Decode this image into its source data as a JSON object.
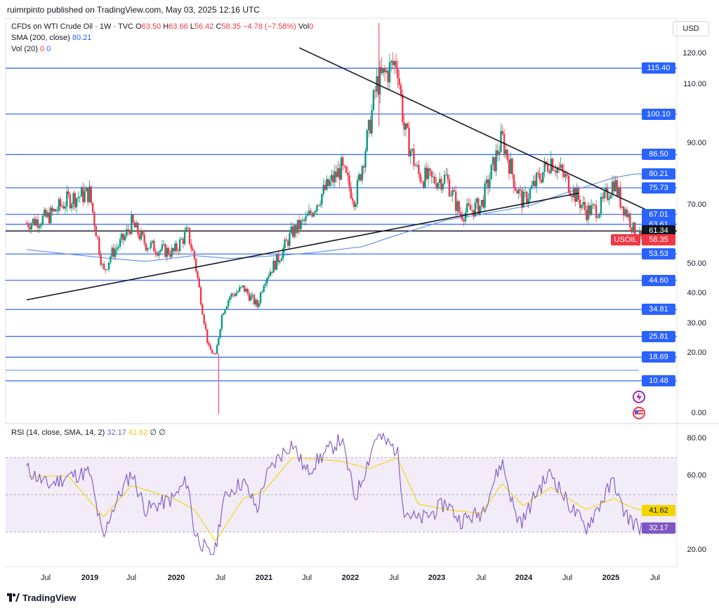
{
  "header": {
    "published_text": "ruimrpinto published on TradingView.com, May 03, 2025 12:16 UTC"
  },
  "legend": {
    "symbol": "CFDs on WTI Crude Oil · 1W · TVC",
    "o_label": "O",
    "o_value": "63.50",
    "h_label": "H",
    "h_value": "63.66",
    "l_label": "L",
    "l_value": "56.42",
    "c_label": "C",
    "c_value": "58.35",
    "change": "−4.78 (−7.58%)",
    "vol_label": "Vol",
    "vol_value": "0",
    "sma_label": "SMA (200, close)",
    "sma_value": "80.21",
    "volma_label": "Vol (20)",
    "volma_value1": "0",
    "volma_value2": "0",
    "rsi_label": "RSI (14, close, SMA, 14, 2)",
    "rsi_value": "32.17",
    "rsi_ma_value": "41.62",
    "rsi_extra": "∅ ∅"
  },
  "currency_button": "USD",
  "footer": {
    "brand": "TradingView"
  },
  "colors": {
    "up": "#089981",
    "down": "#f23645",
    "hline": "#2962ff",
    "sma": "#5b8def",
    "rsi": "#7e57c2",
    "rsi_ma": "#f5d400",
    "band": "#ede7f6",
    "trend": "#131722"
  },
  "icons": [
    "lightning-icon",
    "us-flag-icon"
  ],
  "chart_data": [
    {
      "type": "candlestick",
      "title": "CFDs on WTI Crude Oil",
      "interval": "1W",
      "scale": "log",
      "ylim": [
        0,
        130
      ],
      "y_ticks": [
        "120.00",
        "110.00",
        "90.00",
        "70.00",
        "50.00",
        "40.00",
        "30.00",
        "20.00",
        "0.00"
      ],
      "x_ticks": [
        "Jul",
        "2019",
        "Jul",
        "2020",
        "Jul",
        "2021",
        "Jul",
        "2022",
        "Jul",
        "2023",
        "Jul",
        "2024",
        "Jul",
        "2025",
        "Jul"
      ],
      "horizontal_levels": [
        115.4,
        100.1,
        86.5,
        75.73,
        67.01,
        63.61,
        53.53,
        44.6,
        34.81,
        25.81,
        18.69,
        10.48
      ],
      "level_labels": [
        "115.40",
        "100.10",
        "86.50",
        "75.73",
        "67.01",
        "63.61",
        "53.53",
        "44.60",
        "34.81",
        "25.81",
        "18.69",
        "10.48"
      ],
      "black_level": 61.34,
      "black_level_label": "61.34",
      "last_price": 58.35,
      "last_price_label": "58.35",
      "symbol_label": "USOIL",
      "sma200_label": "80.21",
      "sma200_value": 80.21,
      "trendlines": [
        {
          "from": [
            "2021-04",
            122
          ],
          "to": [
            "2025-07",
            67
          ],
          "note": "descending resistance"
        },
        {
          "from": [
            "2018-01",
            38
          ],
          "to": [
            "2024-08",
            74
          ],
          "note": "ascending support"
        }
      ],
      "close_path": [
        [
          "2018-01",
          64
        ],
        [
          "2018-04",
          66
        ],
        [
          "2018-07",
          72
        ],
        [
          "2018-10",
          74
        ],
        [
          "2018-12",
          47
        ],
        [
          "2019-01",
          53
        ],
        [
          "2019-03",
          59
        ],
        [
          "2019-04",
          64
        ],
        [
          "2019-06",
          57
        ],
        [
          "2019-08",
          55
        ],
        [
          "2019-10",
          54
        ],
        [
          "2019-12",
          61
        ],
        [
          "2020-01",
          52
        ],
        [
          "2020-03",
          22
        ],
        [
          "2020-04",
          19
        ],
        [
          "2020-05",
          34
        ],
        [
          "2020-06",
          39
        ],
        [
          "2020-08",
          42
        ],
        [
          "2020-10",
          36
        ],
        [
          "2020-11",
          45
        ],
        [
          "2021-01",
          52
        ],
        [
          "2021-03",
          61
        ],
        [
          "2021-05",
          65
        ],
        [
          "2021-07",
          73
        ],
        [
          "2021-10",
          82
        ],
        [
          "2021-12",
          72
        ],
        [
          "2022-02",
          95
        ],
        [
          "2022-03",
          110
        ],
        [
          "2022-06",
          118
        ],
        [
          "2022-07",
          95
        ],
        [
          "2022-09",
          80
        ],
        [
          "2022-11",
          78
        ],
        [
          "2023-01",
          79
        ],
        [
          "2023-03",
          67
        ],
        [
          "2023-06",
          70
        ],
        [
          "2023-09",
          92
        ],
        [
          "2023-11",
          76
        ],
        [
          "2023-12",
          71
        ],
        [
          "2024-02",
          78
        ],
        [
          "2024-04",
          85
        ],
        [
          "2024-06",
          79
        ],
        [
          "2024-09",
          68
        ],
        [
          "2024-11",
          69
        ],
        [
          "2025-01",
          78
        ],
        [
          "2025-02",
          71
        ],
        [
          "2025-03",
          67
        ],
        [
          "2025-04",
          60
        ],
        [
          "2025-05",
          58.35
        ]
      ]
    },
    {
      "type": "line",
      "title": "RSI (14, close, SMA, 14, 2)",
      "ylim": [
        15,
        85
      ],
      "y_ticks": [
        "80.00",
        "60.00",
        "20.00"
      ],
      "band": [
        30,
        70
      ],
      "series": [
        {
          "name": "RSI",
          "color": "#7e57c2",
          "last": 32.17
        },
        {
          "name": "RSI-based MA",
          "color": "#f5d400",
          "last": 41.62
        }
      ],
      "rsi_label": "32.17",
      "ma_label": "41.62",
      "rsi_path": [
        [
          "2018-01",
          64
        ],
        [
          "2018-04",
          55
        ],
        [
          "2018-07",
          60
        ],
        [
          "2018-10",
          62
        ],
        [
          "2018-12",
          25
        ],
        [
          "2019-01",
          40
        ],
        [
          "2019-03",
          55
        ],
        [
          "2019-04",
          62
        ],
        [
          "2019-06",
          42
        ],
        [
          "2019-08",
          45
        ],
        [
          "2019-10",
          48
        ],
        [
          "2019-12",
          58
        ],
        [
          "2020-01",
          30
        ],
        [
          "2020-03",
          18
        ],
        [
          "2020-04",
          20
        ],
        [
          "2020-05",
          45
        ],
        [
          "2020-06",
          52
        ],
        [
          "2020-08",
          57
        ],
        [
          "2020-10",
          42
        ],
        [
          "2020-11",
          58
        ],
        [
          "2021-01",
          70
        ],
        [
          "2021-03",
          78
        ],
        [
          "2021-05",
          62
        ],
        [
          "2021-07",
          70
        ],
        [
          "2021-10",
          80
        ],
        [
          "2021-12",
          48
        ],
        [
          "2022-02",
          70
        ],
        [
          "2022-03",
          82
        ],
        [
          "2022-06",
          74
        ],
        [
          "2022-07",
          42
        ],
        [
          "2022-09",
          36
        ],
        [
          "2022-11",
          40
        ],
        [
          "2023-01",
          46
        ],
        [
          "2023-03",
          36
        ],
        [
          "2023-06",
          40
        ],
        [
          "2023-09",
          68
        ],
        [
          "2023-11",
          38
        ],
        [
          "2023-12",
          36
        ],
        [
          "2024-02",
          52
        ],
        [
          "2024-04",
          62
        ],
        [
          "2024-06",
          48
        ],
        [
          "2024-09",
          32
        ],
        [
          "2024-11",
          45
        ],
        [
          "2025-01",
          58
        ],
        [
          "2025-02",
          44
        ],
        [
          "2025-03",
          38
        ],
        [
          "2025-04",
          34
        ],
        [
          "2025-05",
          32.17
        ]
      ],
      "ma_path": [
        [
          "2018-01",
          60
        ],
        [
          "2018-07",
          60
        ],
        [
          "2018-12",
          38
        ],
        [
          "2019-04",
          55
        ],
        [
          "2019-10",
          48
        ],
        [
          "2020-01",
          42
        ],
        [
          "2020-04",
          25
        ],
        [
          "2020-08",
          48
        ],
        [
          "2020-11",
          52
        ],
        [
          "2021-03",
          70
        ],
        [
          "2021-07",
          69
        ],
        [
          "2021-10",
          68
        ],
        [
          "2022-02",
          64
        ],
        [
          "2022-06",
          70
        ],
        [
          "2022-09",
          45
        ],
        [
          "2023-01",
          42
        ],
        [
          "2023-06",
          40
        ],
        [
          "2023-09",
          56
        ],
        [
          "2023-12",
          44
        ],
        [
          "2024-04",
          54
        ],
        [
          "2024-09",
          42
        ],
        [
          "2025-01",
          48
        ],
        [
          "2025-03",
          44
        ],
        [
          "2025-05",
          41.62
        ]
      ]
    }
  ]
}
